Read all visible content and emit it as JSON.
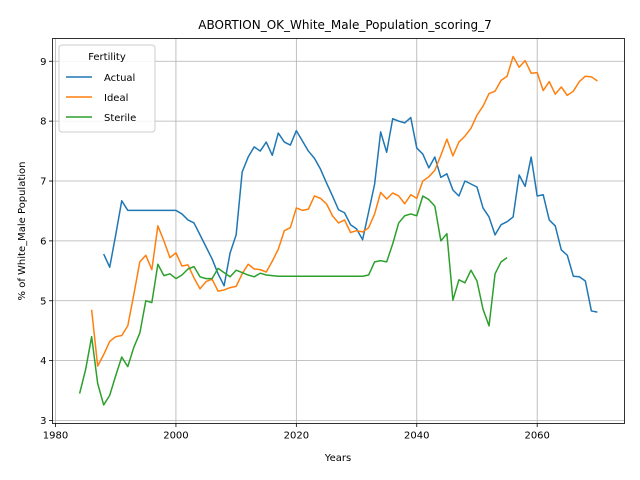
{
  "chart_data": {
    "type": "line",
    "title": "ABORTION_OK_White_Male_Population_scoring_7",
    "xlabel": "Years",
    "ylabel": "% of White_Male Population",
    "xlim": [
      1979.5,
      2074.5
    ],
    "ylim": [
      2.95,
      9.38
    ],
    "xticks": [
      1980,
      2000,
      2020,
      2040,
      2060
    ],
    "yticks": [
      3,
      4,
      5,
      6,
      7,
      8,
      9
    ],
    "grid": true,
    "legend": {
      "title": "Fertility",
      "placement": "top-left"
    },
    "series": [
      {
        "name": "Actual",
        "color": "#1f77b4",
        "points": [
          [
            1988,
            5.78
          ],
          [
            1989,
            5.56
          ],
          [
            1990,
            6.1
          ],
          [
            1991,
            6.67
          ],
          [
            1992,
            6.51
          ],
          [
            1993,
            6.51
          ],
          [
            1994,
            6.51
          ],
          [
            1995,
            6.51
          ],
          [
            1996,
            6.51
          ],
          [
            1997,
            6.51
          ],
          [
            1998,
            6.51
          ],
          [
            1999,
            6.51
          ],
          [
            2000,
            6.51
          ],
          [
            2001,
            6.45
          ],
          [
            2002,
            6.35
          ],
          [
            2003,
            6.3
          ],
          [
            2004,
            6.1
          ],
          [
            2005,
            5.9
          ],
          [
            2006,
            5.7
          ],
          [
            2007,
            5.45
          ],
          [
            2008,
            5.25
          ],
          [
            2009,
            5.8
          ],
          [
            2010,
            6.1
          ],
          [
            2011,
            7.15
          ],
          [
            2012,
            7.4
          ],
          [
            2013,
            7.57
          ],
          [
            2014,
            7.5
          ],
          [
            2015,
            7.65
          ],
          [
            2016,
            7.43
          ],
          [
            2017,
            7.8
          ],
          [
            2018,
            7.65
          ],
          [
            2019,
            7.6
          ],
          [
            2020,
            7.84
          ],
          [
            2021,
            7.67
          ],
          [
            2022,
            7.5
          ],
          [
            2023,
            7.38
          ],
          [
            2024,
            7.2
          ],
          [
            2025,
            6.97
          ],
          [
            2026,
            6.75
          ],
          [
            2027,
            6.52
          ],
          [
            2028,
            6.47
          ],
          [
            2029,
            6.27
          ],
          [
            2030,
            6.2
          ],
          [
            2031,
            6.02
          ],
          [
            2032,
            6.48
          ],
          [
            2033,
            6.95
          ],
          [
            2034,
            7.82
          ],
          [
            2035,
            7.48
          ],
          [
            2036,
            8.04
          ],
          [
            2037,
            8.0
          ],
          [
            2038,
            7.97
          ],
          [
            2039,
            8.06
          ],
          [
            2040,
            7.55
          ],
          [
            2041,
            7.45
          ],
          [
            2042,
            7.22
          ],
          [
            2043,
            7.4
          ],
          [
            2044,
            7.06
          ],
          [
            2045,
            7.12
          ],
          [
            2046,
            6.85
          ],
          [
            2047,
            6.75
          ],
          [
            2048,
            7.0
          ],
          [
            2049,
            6.95
          ],
          [
            2050,
            6.9
          ],
          [
            2051,
            6.55
          ],
          [
            2052,
            6.4
          ],
          [
            2053,
            6.1
          ],
          [
            2054,
            6.27
          ],
          [
            2055,
            6.32
          ],
          [
            2056,
            6.4
          ],
          [
            2057,
            7.1
          ],
          [
            2058,
            6.91
          ],
          [
            2059,
            7.4
          ],
          [
            2060,
            6.75
          ],
          [
            2061,
            6.77
          ],
          [
            2062,
            6.35
          ],
          [
            2063,
            6.25
          ],
          [
            2064,
            5.85
          ],
          [
            2065,
            5.76
          ],
          [
            2066,
            5.41
          ],
          [
            2067,
            5.4
          ],
          [
            2068,
            5.33
          ],
          [
            2069,
            4.83
          ],
          [
            2070,
            4.81
          ]
        ]
      },
      {
        "name": "Ideal",
        "color": "#ff7f0e",
        "points": [
          [
            1986,
            4.85
          ],
          [
            1987,
            3.91
          ],
          [
            1988,
            4.1
          ],
          [
            1989,
            4.32
          ],
          [
            1990,
            4.4
          ],
          [
            1991,
            4.42
          ],
          [
            1992,
            4.58
          ],
          [
            1993,
            5.1
          ],
          [
            1994,
            5.65
          ],
          [
            1995,
            5.76
          ],
          [
            1996,
            5.52
          ],
          [
            1997,
            6.25
          ],
          [
            1998,
            6.0
          ],
          [
            1999,
            5.72
          ],
          [
            2000,
            5.8
          ],
          [
            2001,
            5.58
          ],
          [
            2002,
            5.6
          ],
          [
            2003,
            5.38
          ],
          [
            2004,
            5.2
          ],
          [
            2005,
            5.32
          ],
          [
            2006,
            5.36
          ],
          [
            2007,
            5.16
          ],
          [
            2008,
            5.18
          ],
          [
            2009,
            5.22
          ],
          [
            2010,
            5.24
          ],
          [
            2011,
            5.45
          ],
          [
            2012,
            5.61
          ],
          [
            2013,
            5.53
          ],
          [
            2014,
            5.52
          ],
          [
            2015,
            5.48
          ],
          [
            2016,
            5.66
          ],
          [
            2017,
            5.86
          ],
          [
            2018,
            6.17
          ],
          [
            2019,
            6.22
          ],
          [
            2020,
            6.55
          ],
          [
            2021,
            6.51
          ],
          [
            2022,
            6.53
          ],
          [
            2023,
            6.75
          ],
          [
            2024,
            6.71
          ],
          [
            2025,
            6.62
          ],
          [
            2026,
            6.42
          ],
          [
            2027,
            6.3
          ],
          [
            2028,
            6.35
          ],
          [
            2029,
            6.14
          ],
          [
            2030,
            6.17
          ],
          [
            2031,
            6.15
          ],
          [
            2032,
            6.22
          ],
          [
            2033,
            6.45
          ],
          [
            2034,
            6.81
          ],
          [
            2035,
            6.7
          ],
          [
            2036,
            6.8
          ],
          [
            2037,
            6.75
          ],
          [
            2038,
            6.62
          ],
          [
            2039,
            6.77
          ],
          [
            2040,
            6.71
          ],
          [
            2041,
            7.0
          ],
          [
            2042,
            7.07
          ],
          [
            2043,
            7.18
          ],
          [
            2044,
            7.43
          ],
          [
            2045,
            7.7
          ],
          [
            2046,
            7.42
          ],
          [
            2047,
            7.65
          ],
          [
            2048,
            7.75
          ],
          [
            2049,
            7.88
          ],
          [
            2050,
            8.1
          ],
          [
            2051,
            8.25
          ],
          [
            2052,
            8.46
          ],
          [
            2053,
            8.5
          ],
          [
            2054,
            8.68
          ],
          [
            2055,
            8.75
          ],
          [
            2056,
            9.08
          ],
          [
            2057,
            8.9
          ],
          [
            2058,
            9.01
          ],
          [
            2059,
            8.8
          ],
          [
            2060,
            8.81
          ],
          [
            2061,
            8.51
          ],
          [
            2062,
            8.66
          ],
          [
            2063,
            8.45
          ],
          [
            2064,
            8.57
          ],
          [
            2065,
            8.43
          ],
          [
            2066,
            8.5
          ],
          [
            2067,
            8.66
          ],
          [
            2068,
            8.75
          ],
          [
            2069,
            8.74
          ],
          [
            2070,
            8.67
          ]
        ]
      },
      {
        "name": "Sterile",
        "color": "#2ca02c",
        "points": [
          [
            1984,
            3.45
          ],
          [
            1985,
            3.85
          ],
          [
            1986,
            4.4
          ],
          [
            1987,
            3.62
          ],
          [
            1988,
            3.26
          ],
          [
            1989,
            3.42
          ],
          [
            1990,
            3.75
          ],
          [
            1991,
            4.06
          ],
          [
            1992,
            3.9
          ],
          [
            1993,
            4.22
          ],
          [
            1994,
            4.46
          ],
          [
            1995,
            5.0
          ],
          [
            1996,
            4.97
          ],
          [
            1997,
            5.61
          ],
          [
            1998,
            5.42
          ],
          [
            1999,
            5.45
          ],
          [
            2000,
            5.37
          ],
          [
            2001,
            5.43
          ],
          [
            2002,
            5.53
          ],
          [
            2003,
            5.57
          ],
          [
            2004,
            5.4
          ],
          [
            2005,
            5.37
          ],
          [
            2006,
            5.37
          ],
          [
            2007,
            5.54
          ],
          [
            2008,
            5.47
          ],
          [
            2009,
            5.4
          ],
          [
            2010,
            5.51
          ],
          [
            2011,
            5.47
          ],
          [
            2012,
            5.43
          ],
          [
            2013,
            5.4
          ],
          [
            2014,
            5.46
          ],
          [
            2015,
            5.43
          ],
          [
            2016,
            5.42
          ],
          [
            2017,
            5.41
          ],
          [
            2018,
            5.41
          ],
          [
            2019,
            5.41
          ],
          [
            2020,
            5.41
          ],
          [
            2021,
            5.41
          ],
          [
            2022,
            5.41
          ],
          [
            2023,
            5.41
          ],
          [
            2024,
            5.41
          ],
          [
            2025,
            5.41
          ],
          [
            2026,
            5.41
          ],
          [
            2027,
            5.41
          ],
          [
            2028,
            5.41
          ],
          [
            2029,
            5.41
          ],
          [
            2030,
            5.41
          ],
          [
            2031,
            5.41
          ],
          [
            2032,
            5.43
          ],
          [
            2033,
            5.65
          ],
          [
            2034,
            5.67
          ],
          [
            2035,
            5.65
          ],
          [
            2036,
            5.95
          ],
          [
            2037,
            6.3
          ],
          [
            2038,
            6.42
          ],
          [
            2039,
            6.45
          ],
          [
            2040,
            6.42
          ],
          [
            2041,
            6.75
          ],
          [
            2042,
            6.69
          ],
          [
            2043,
            6.58
          ],
          [
            2044,
            6.0
          ],
          [
            2045,
            6.12
          ],
          [
            2046,
            5.01
          ],
          [
            2047,
            5.35
          ],
          [
            2048,
            5.3
          ],
          [
            2049,
            5.51
          ],
          [
            2050,
            5.33
          ],
          [
            2051,
            4.86
          ],
          [
            2052,
            4.58
          ],
          [
            2053,
            5.45
          ],
          [
            2054,
            5.65
          ],
          [
            2055,
            5.72
          ]
        ]
      }
    ]
  }
}
